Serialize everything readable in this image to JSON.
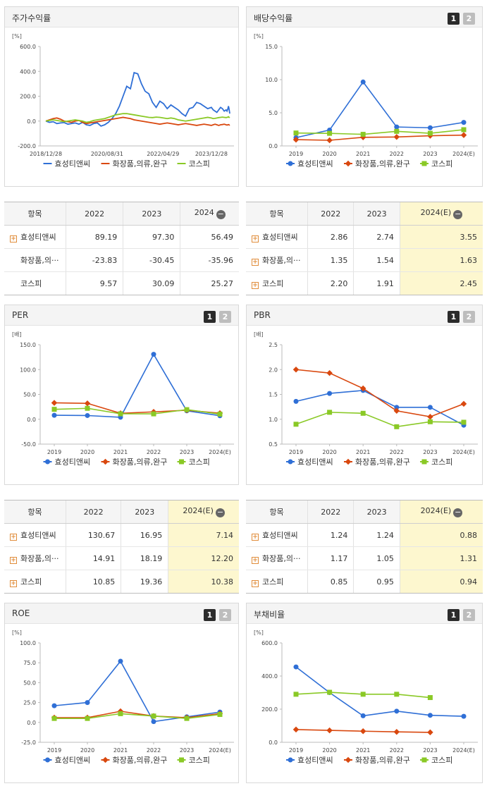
{
  "colors": {
    "company": "#2f6fd6",
    "industry": "#d9480f",
    "kospi": "#8ac926"
  },
  "legend": [
    "효성티앤씨",
    "화장품,의류,완구",
    "코스피"
  ],
  "pager": [
    "1",
    "2"
  ],
  "minus_icon": "−",
  "panels": {
    "stock_return": {
      "title": "주가수익률"
    },
    "dividend": {
      "title": "배당수익률"
    },
    "per": {
      "title": "PER"
    },
    "pbr": {
      "title": "PBR"
    },
    "roe": {
      "title": "ROE"
    },
    "debt": {
      "title": "부채비율"
    }
  },
  "chart_data": [
    {
      "id": "stock_return",
      "type": "line",
      "title": "주가수익률",
      "ylabel": "[%]",
      "ylim": [
        -200,
        600
      ],
      "yticks": [
        -200,
        0,
        200,
        400,
        600
      ],
      "ytick_labels": [
        "-200.0",
        "0.0",
        "200.0",
        "400.0",
        "600.0"
      ],
      "xlabels": [
        "2018/12/28",
        "2020/08/31",
        "2022/04/29",
        "2023/12/28"
      ],
      "xlabel_pos": [
        0,
        0.333,
        0.637,
        0.9
      ],
      "markers": false,
      "series": [
        {
          "name": "효성티앤씨",
          "values": [
            0,
            -10,
            -5,
            -20,
            -15,
            -12,
            -25,
            -20,
            -15,
            -25,
            -10,
            -30,
            -35,
            -20,
            -15,
            -40,
            -30,
            -10,
            20,
            60,
            120,
            200,
            280,
            260,
            390,
            380,
            300,
            240,
            220,
            150,
            110,
            160,
            140,
            100,
            130,
            110,
            90,
            60,
            40,
            100,
            110,
            150,
            140,
            120,
            100,
            110,
            90,
            80,
            70,
            90,
            110,
            100,
            80,
            90,
            80,
            100,
            120,
            100,
            80,
            60
          ],
          "x": [
            0,
            0.02,
            0.04,
            0.06,
            0.08,
            0.1,
            0.12,
            0.14,
            0.16,
            0.18,
            0.2,
            0.22,
            0.24,
            0.26,
            0.28,
            0.3,
            0.32,
            0.34,
            0.36,
            0.38,
            0.4,
            0.42,
            0.44,
            0.46,
            0.48,
            0.5,
            0.52,
            0.54,
            0.56,
            0.58,
            0.6,
            0.62,
            0.64,
            0.66,
            0.68,
            0.7,
            0.72,
            0.74,
            0.76,
            0.78,
            0.8,
            0.82,
            0.84,
            0.86,
            0.88,
            0.9,
            0.91,
            0.92,
            0.93,
            0.94,
            0.95,
            0.96,
            0.97,
            0.98,
            0.985,
            0.99,
            0.993,
            0.996,
            0.998,
            1.0
          ]
        },
        {
          "name": "화장품,의류,완구",
          "values": [
            0,
            10,
            20,
            25,
            15,
            0,
            -5,
            -10,
            0,
            5,
            -10,
            -20,
            -15,
            -10,
            -5,
            0,
            5,
            10,
            15,
            20,
            25,
            30,
            25,
            20,
            10,
            5,
            0,
            -5,
            -10,
            -15,
            -20,
            -25,
            -20,
            -15,
            -20,
            -25,
            -30,
            -25,
            -20,
            -25,
            -30,
            -35,
            -30,
            -25,
            -30,
            -35,
            -30,
            -25,
            -30,
            -35,
            -30,
            -28,
            -25,
            -30,
            -32,
            -30,
            -28,
            -30,
            -32,
            -30
          ],
          "x": [
            0,
            0.02,
            0.04,
            0.06,
            0.08,
            0.1,
            0.12,
            0.14,
            0.16,
            0.18,
            0.2,
            0.22,
            0.24,
            0.26,
            0.28,
            0.3,
            0.32,
            0.34,
            0.36,
            0.38,
            0.4,
            0.42,
            0.44,
            0.46,
            0.48,
            0.5,
            0.52,
            0.54,
            0.56,
            0.58,
            0.6,
            0.62,
            0.64,
            0.66,
            0.68,
            0.7,
            0.72,
            0.74,
            0.76,
            0.78,
            0.8,
            0.82,
            0.84,
            0.86,
            0.88,
            0.9,
            0.91,
            0.92,
            0.93,
            0.94,
            0.95,
            0.96,
            0.97,
            0.98,
            0.985,
            0.99,
            0.993,
            0.996,
            0.998,
            1.0
          ]
        },
        {
          "name": "코스피",
          "values": [
            0,
            5,
            10,
            5,
            0,
            -5,
            0,
            5,
            10,
            5,
            0,
            -10,
            -5,
            5,
            10,
            15,
            20,
            30,
            40,
            50,
            55,
            60,
            60,
            55,
            50,
            45,
            40,
            35,
            30,
            28,
            32,
            30,
            25,
            20,
            25,
            20,
            10,
            5,
            0,
            5,
            10,
            15,
            20,
            25,
            30,
            25,
            20,
            22,
            25,
            28,
            30,
            32,
            30,
            28,
            30,
            32,
            35,
            30,
            30,
            32
          ],
          "x": [
            0,
            0.02,
            0.04,
            0.06,
            0.08,
            0.1,
            0.12,
            0.14,
            0.16,
            0.18,
            0.2,
            0.22,
            0.24,
            0.26,
            0.28,
            0.3,
            0.32,
            0.34,
            0.36,
            0.38,
            0.4,
            0.42,
            0.44,
            0.46,
            0.48,
            0.5,
            0.52,
            0.54,
            0.56,
            0.58,
            0.6,
            0.62,
            0.64,
            0.66,
            0.68,
            0.7,
            0.72,
            0.74,
            0.76,
            0.78,
            0.8,
            0.82,
            0.84,
            0.86,
            0.88,
            0.9,
            0.91,
            0.92,
            0.93,
            0.94,
            0.95,
            0.96,
            0.97,
            0.98,
            0.985,
            0.99,
            0.993,
            0.996,
            0.998,
            1.0
          ]
        }
      ]
    },
    {
      "id": "dividend",
      "type": "line",
      "title": "배당수익률",
      "ylabel": "[%]",
      "ylim": [
        0,
        15
      ],
      "yticks": [
        0,
        5,
        10,
        15
      ],
      "ytick_labels": [
        "0.0",
        "5.0",
        "10.0",
        "15.0"
      ],
      "categories": [
        "2019",
        "2020",
        "2021",
        "2022",
        "2023",
        "2024(E)"
      ],
      "markers": true,
      "series": [
        {
          "name": "효성티앤씨",
          "values": [
            1.25,
            2.4,
            9.65,
            2.86,
            2.74,
            3.55
          ]
        },
        {
          "name": "화장품,의류,완구",
          "values": [
            0.95,
            0.85,
            1.3,
            1.35,
            1.54,
            1.63
          ]
        },
        {
          "name": "코스피",
          "values": [
            1.95,
            1.9,
            1.75,
            2.2,
            1.91,
            2.45
          ]
        }
      ]
    },
    {
      "id": "per",
      "type": "line",
      "title": "PER",
      "ylabel": "[배]",
      "ylim": [
        -50,
        150
      ],
      "yticks": [
        -50,
        0,
        50,
        100,
        150
      ],
      "ytick_labels": [
        "-50.0",
        "0.0",
        "50.0",
        "100.0",
        "150.0"
      ],
      "categories": [
        "2019",
        "2020",
        "2021",
        "2022",
        "2023",
        "2024(E)"
      ],
      "markers": true,
      "series": [
        {
          "name": "효성티앤씨",
          "values": [
            8,
            7.5,
            4,
            130.67,
            16.95,
            7.14
          ]
        },
        {
          "name": "화장품,의류,완구",
          "values": [
            33,
            32,
            12,
            14.91,
            18.19,
            12.2
          ]
        },
        {
          "name": "코스피",
          "values": [
            20,
            22,
            11,
            10.85,
            19.36,
            10.38
          ]
        }
      ]
    },
    {
      "id": "pbr",
      "type": "line",
      "title": "PBR",
      "ylabel": "[배]",
      "ylim": [
        0.5,
        2.5
      ],
      "yticks": [
        0.5,
        1.0,
        1.5,
        2.0,
        2.5
      ],
      "ytick_labels": [
        "0.5",
        "1.0",
        "1.5",
        "2.0",
        "2.5"
      ],
      "categories": [
        "2019",
        "2020",
        "2021",
        "2022",
        "2023",
        "2024(E)"
      ],
      "markers": true,
      "series": [
        {
          "name": "효성티앤씨",
          "values": [
            1.36,
            1.52,
            1.58,
            1.24,
            1.24,
            0.88
          ]
        },
        {
          "name": "화장품,의류,완구",
          "values": [
            2.0,
            1.93,
            1.62,
            1.17,
            1.05,
            1.31
          ]
        },
        {
          "name": "코스피",
          "values": [
            0.9,
            1.14,
            1.12,
            0.85,
            0.95,
            0.94
          ]
        }
      ]
    },
    {
      "id": "roe",
      "type": "line",
      "title": "ROE",
      "ylabel": "[%]",
      "ylim": [
        -25,
        100
      ],
      "yticks": [
        -25,
        0,
        25,
        50,
        75,
        100
      ],
      "ytick_labels": [
        "-25.0",
        "0.0",
        "25.0",
        "50.0",
        "75.0",
        "100.0"
      ],
      "categories": [
        "2019",
        "2020",
        "2021",
        "2022",
        "2023",
        "2024(E)"
      ],
      "markers": true,
      "series": [
        {
          "name": "효성티앤씨",
          "values": [
            21,
            25,
            77,
            1,
            7,
            13
          ]
        },
        {
          "name": "화장품,의류,완구",
          "values": [
            6,
            6,
            14,
            8,
            6,
            11
          ]
        },
        {
          "name": "코스피",
          "values": [
            5,
            5,
            11,
            8,
            5,
            10
          ]
        }
      ]
    },
    {
      "id": "debt",
      "type": "line",
      "title": "부채비율",
      "ylabel": "[%]",
      "ylim": [
        0,
        600
      ],
      "yticks": [
        0,
        200,
        400,
        600
      ],
      "ytick_labels": [
        "0.0",
        "200.0",
        "400.0",
        "600.0"
      ],
      "categories": [
        "2019",
        "2020",
        "2021",
        "2022",
        "2023",
        "2024(E)"
      ],
      "markers": true,
      "series": [
        {
          "name": "효성티앤씨",
          "values": [
            455,
            300,
            160,
            188,
            163,
            157
          ]
        },
        {
          "name": "화장품,의류,완구",
          "values": [
            77,
            72,
            67,
            63,
            60,
            null
          ]
        },
        {
          "name": "코스피",
          "values": [
            290,
            302,
            290,
            290,
            270,
            null
          ]
        }
      ]
    }
  ],
  "tables": {
    "stock_return": {
      "headers": [
        "항목",
        "2022",
        "2023",
        "2024"
      ],
      "rows": [
        {
          "name": "효성티앤씨",
          "vals": [
            "89.19",
            "97.30",
            "56.49"
          ],
          "plus": true
        },
        {
          "name": "화장품,의···",
          "vals": [
            "-23.83",
            "-30.45",
            "-35.96"
          ],
          "plus": false
        },
        {
          "name": "코스피",
          "vals": [
            "9.57",
            "30.09",
            "25.27"
          ],
          "plus": false
        }
      ]
    },
    "dividend": {
      "headers": [
        "항목",
        "2022",
        "2023",
        "2024(E)"
      ],
      "rows": [
        {
          "name": "효성티앤씨",
          "vals": [
            "2.86",
            "2.74",
            "3.55"
          ],
          "plus": true
        },
        {
          "name": "화장품,의···",
          "vals": [
            "1.35",
            "1.54",
            "1.63"
          ],
          "plus": true
        },
        {
          "name": "코스피",
          "vals": [
            "2.20",
            "1.91",
            "2.45"
          ],
          "plus": true
        }
      ]
    },
    "per": {
      "headers": [
        "항목",
        "2022",
        "2023",
        "2024(E)"
      ],
      "rows": [
        {
          "name": "효성티앤씨",
          "vals": [
            "130.67",
            "16.95",
            "7.14"
          ],
          "plus": true
        },
        {
          "name": "화장품,의···",
          "vals": [
            "14.91",
            "18.19",
            "12.20"
          ],
          "plus": true
        },
        {
          "name": "코스피",
          "vals": [
            "10.85",
            "19.36",
            "10.38"
          ],
          "plus": true
        }
      ]
    },
    "pbr": {
      "headers": [
        "항목",
        "2022",
        "2023",
        "2024(E)"
      ],
      "rows": [
        {
          "name": "효성티앤씨",
          "vals": [
            "1.24",
            "1.24",
            "0.88"
          ],
          "plus": true
        },
        {
          "name": "화장품,의···",
          "vals": [
            "1.17",
            "1.05",
            "1.31"
          ],
          "plus": true
        },
        {
          "name": "코스피",
          "vals": [
            "0.85",
            "0.95",
            "0.94"
          ],
          "plus": true
        }
      ]
    }
  }
}
